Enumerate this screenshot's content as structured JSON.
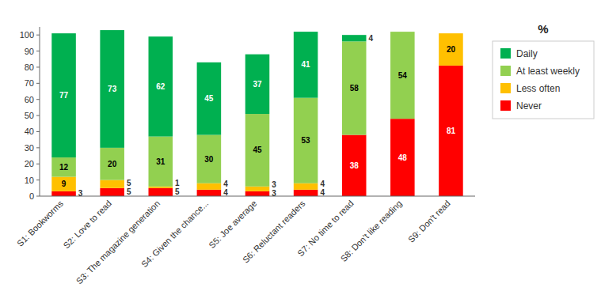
{
  "chart_data": {
    "type": "bar",
    "stacked": true,
    "data_labels": true,
    "ylabel": "%",
    "categories": [
      "S1: Bookworms",
      "S2: Love to read",
      "S3: The magazine generation",
      "S4: Given the chance...",
      "S5: Joe average",
      "S6: Reluctant readers",
      "S7: No time to read",
      "S8: Don't like reading",
      "S9: Don't read"
    ],
    "series": [
      {
        "name": "Never",
        "color": "#ff0000",
        "values": [
          3,
          5,
          5,
          4,
          3,
          4,
          38,
          48,
          81
        ]
      },
      {
        "name": "Less often",
        "color": "#ffc000",
        "values": [
          9,
          5,
          1,
          4,
          3,
          4,
          0,
          0,
          20
        ]
      },
      {
        "name": "At least weekly",
        "color": "#92d050",
        "values": [
          12,
          20,
          31,
          30,
          45,
          53,
          58,
          54,
          0
        ]
      },
      {
        "name": "Daily",
        "color": "#00b050",
        "values": [
          77,
          73,
          62,
          45,
          37,
          41,
          4,
          0,
          0
        ]
      }
    ],
    "ylim": [
      0,
      105
    ],
    "yticks": [
      0,
      10,
      20,
      30,
      40,
      50,
      60,
      70,
      80,
      90,
      100
    ],
    "grid": false,
    "legend": "right"
  }
}
